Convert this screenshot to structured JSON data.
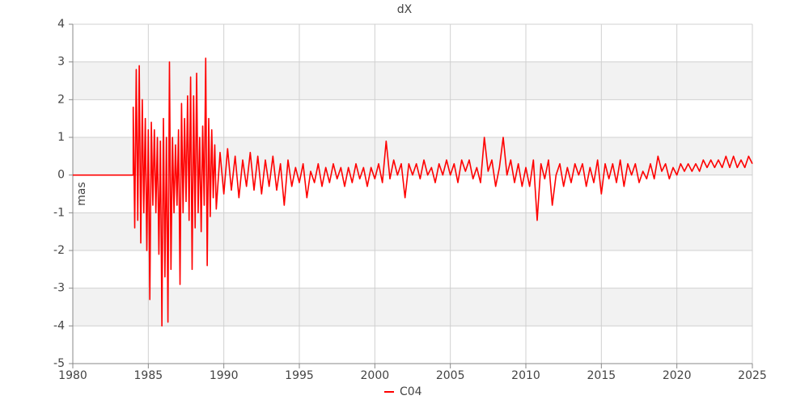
{
  "chart_data": {
    "type": "line",
    "title": "dX",
    "y_label": "mas",
    "xlim": [
      1980,
      2025
    ],
    "ylim": [
      -5,
      4
    ],
    "xticks": [
      1980,
      1985,
      1990,
      1995,
      2000,
      2005,
      2010,
      2015,
      2020,
      2025
    ],
    "yticks": [
      -5,
      -4,
      -3,
      -2,
      -1,
      0,
      1,
      2,
      3,
      4
    ],
    "grid": true,
    "banded": true,
    "legend": "bottom",
    "x": [
      1980,
      1984,
      1984.0,
      1984.1,
      1984.2,
      1984.3,
      1984.4,
      1984.5,
      1984.6,
      1984.7,
      1984.8,
      1984.9,
      1985.0,
      1985.1,
      1985.2,
      1985.3,
      1985.4,
      1985.5,
      1985.6,
      1985.7,
      1985.8,
      1985.9,
      1986.0,
      1986.1,
      1986.2,
      1986.3,
      1986.4,
      1986.5,
      1986.6,
      1986.7,
      1986.8,
      1986.9,
      1987.0,
      1987.1,
      1987.2,
      1987.3,
      1987.4,
      1987.5,
      1987.6,
      1987.7,
      1987.8,
      1987.9,
      1988.0,
      1988.1,
      1988.2,
      1988.3,
      1988.4,
      1988.5,
      1988.6,
      1988.7,
      1988.8,
      1988.9,
      1989.0,
      1989.1,
      1989.2,
      1989.3,
      1989.4,
      1989.5,
      1989.75,
      1990.0,
      1990.25,
      1990.5,
      1990.75,
      1991.0,
      1991.25,
      1991.5,
      1991.75,
      1992.0,
      1992.25,
      1992.5,
      1992.75,
      1993.0,
      1993.25,
      1993.5,
      1993.75,
      1994.0,
      1994.25,
      1994.5,
      1994.75,
      1995.0,
      1995.25,
      1995.5,
      1995.75,
      1996.0,
      1996.25,
      1996.5,
      1996.75,
      1997.0,
      1997.25,
      1997.5,
      1997.75,
      1998.0,
      1998.25,
      1998.5,
      1998.75,
      1999.0,
      1999.25,
      1999.5,
      1999.75,
      2000.0,
      2000.25,
      2000.5,
      2000.75,
      2001.0,
      2001.25,
      2001.5,
      2001.75,
      2002.0,
      2002.25,
      2002.5,
      2002.75,
      2003.0,
      2003.25,
      2003.5,
      2003.75,
      2004.0,
      2004.25,
      2004.5,
      2004.75,
      2005.0,
      2005.25,
      2005.5,
      2005.75,
      2006.0,
      2006.25,
      2006.5,
      2006.75,
      2007.0,
      2007.25,
      2007.5,
      2007.75,
      2008.0,
      2008.25,
      2008.5,
      2008.75,
      2009.0,
      2009.25,
      2009.5,
      2009.75,
      2010.0,
      2010.25,
      2010.5,
      2010.75,
      2011.0,
      2011.25,
      2011.5,
      2011.75,
      2012.0,
      2012.25,
      2012.5,
      2012.75,
      2013.0,
      2013.25,
      2013.5,
      2013.75,
      2014.0,
      2014.25,
      2014.5,
      2014.75,
      2015.0,
      2015.25,
      2015.5,
      2015.75,
      2016.0,
      2016.25,
      2016.5,
      2016.75,
      2017.0,
      2017.25,
      2017.5,
      2017.75,
      2018.0,
      2018.25,
      2018.5,
      2018.75,
      2019.0,
      2019.25,
      2019.5,
      2019.75,
      2020.0,
      2020.25,
      2020.5,
      2020.75,
      2021.0,
      2021.25,
      2021.5,
      2021.75,
      2022.0,
      2022.25,
      2022.5,
      2022.75,
      2023.0,
      2023.25,
      2023.5,
      2023.75,
      2024.0,
      2024.25,
      2024.5,
      2024.75,
      2025.0
    ],
    "series": [
      {
        "name": "C04",
        "color": "#ff0000",
        "values": [
          0,
          0,
          1.8,
          -1.4,
          2.8,
          -1.2,
          2.9,
          -1.8,
          2.0,
          -1.0,
          1.5,
          -2.0,
          1.2,
          -3.3,
          1.4,
          -0.8,
          1.2,
          -1.0,
          1.0,
          -2.1,
          0.9,
          -4.0,
          1.5,
          -2.7,
          1.0,
          -3.9,
          3.0,
          -2.5,
          1.0,
          -1.0,
          0.8,
          -0.8,
          1.2,
          -2.9,
          1.9,
          -1.0,
          1.5,
          -0.7,
          2.1,
          -1.2,
          2.6,
          -2.5,
          2.1,
          -1.4,
          2.7,
          -1.0,
          1.0,
          -1.5,
          1.3,
          -0.8,
          3.1,
          -2.4,
          1.5,
          -1.1,
          1.2,
          -0.6,
          0.8,
          -0.9,
          0.6,
          -0.5,
          0.7,
          -0.4,
          0.5,
          -0.6,
          0.4,
          -0.3,
          0.6,
          -0.4,
          0.5,
          -0.5,
          0.4,
          -0.3,
          0.5,
          -0.4,
          0.3,
          -0.8,
          0.4,
          -0.3,
          0.2,
          -0.2,
          0.3,
          -0.6,
          0.1,
          -0.2,
          0.3,
          -0.3,
          0.2,
          -0.2,
          0.3,
          -0.1,
          0.2,
          -0.3,
          0.2,
          -0.2,
          0.3,
          -0.1,
          0.2,
          -0.3,
          0.2,
          -0.1,
          0.3,
          -0.2,
          0.9,
          -0.1,
          0.4,
          0.0,
          0.3,
          -0.6,
          0.3,
          0.0,
          0.3,
          -0.1,
          0.4,
          0.0,
          0.2,
          -0.2,
          0.3,
          0.0,
          0.4,
          0.0,
          0.3,
          -0.2,
          0.4,
          0.1,
          0.4,
          -0.1,
          0.2,
          -0.2,
          1.0,
          0.1,
          0.4,
          -0.3,
          0.2,
          1.0,
          0.0,
          0.4,
          -0.2,
          0.3,
          -0.3,
          0.2,
          -0.3,
          0.4,
          -1.2,
          0.3,
          -0.1,
          0.4,
          -0.8,
          0.0,
          0.3,
          -0.3,
          0.2,
          -0.2,
          0.3,
          0.0,
          0.3,
          -0.3,
          0.2,
          -0.2,
          0.4,
          -0.5,
          0.3,
          -0.1,
          0.3,
          -0.2,
          0.4,
          -0.3,
          0.3,
          0.0,
          0.3,
          -0.2,
          0.1,
          -0.1,
          0.3,
          -0.1,
          0.5,
          0.1,
          0.3,
          -0.1,
          0.2,
          0.0,
          0.3,
          0.1,
          0.3,
          0.1,
          0.3,
          0.1,
          0.4,
          0.2,
          0.4,
          0.2,
          0.4,
          0.2,
          0.5,
          0.2,
          0.5,
          0.2,
          0.4,
          0.2,
          0.5,
          0.3
        ]
      }
    ]
  }
}
